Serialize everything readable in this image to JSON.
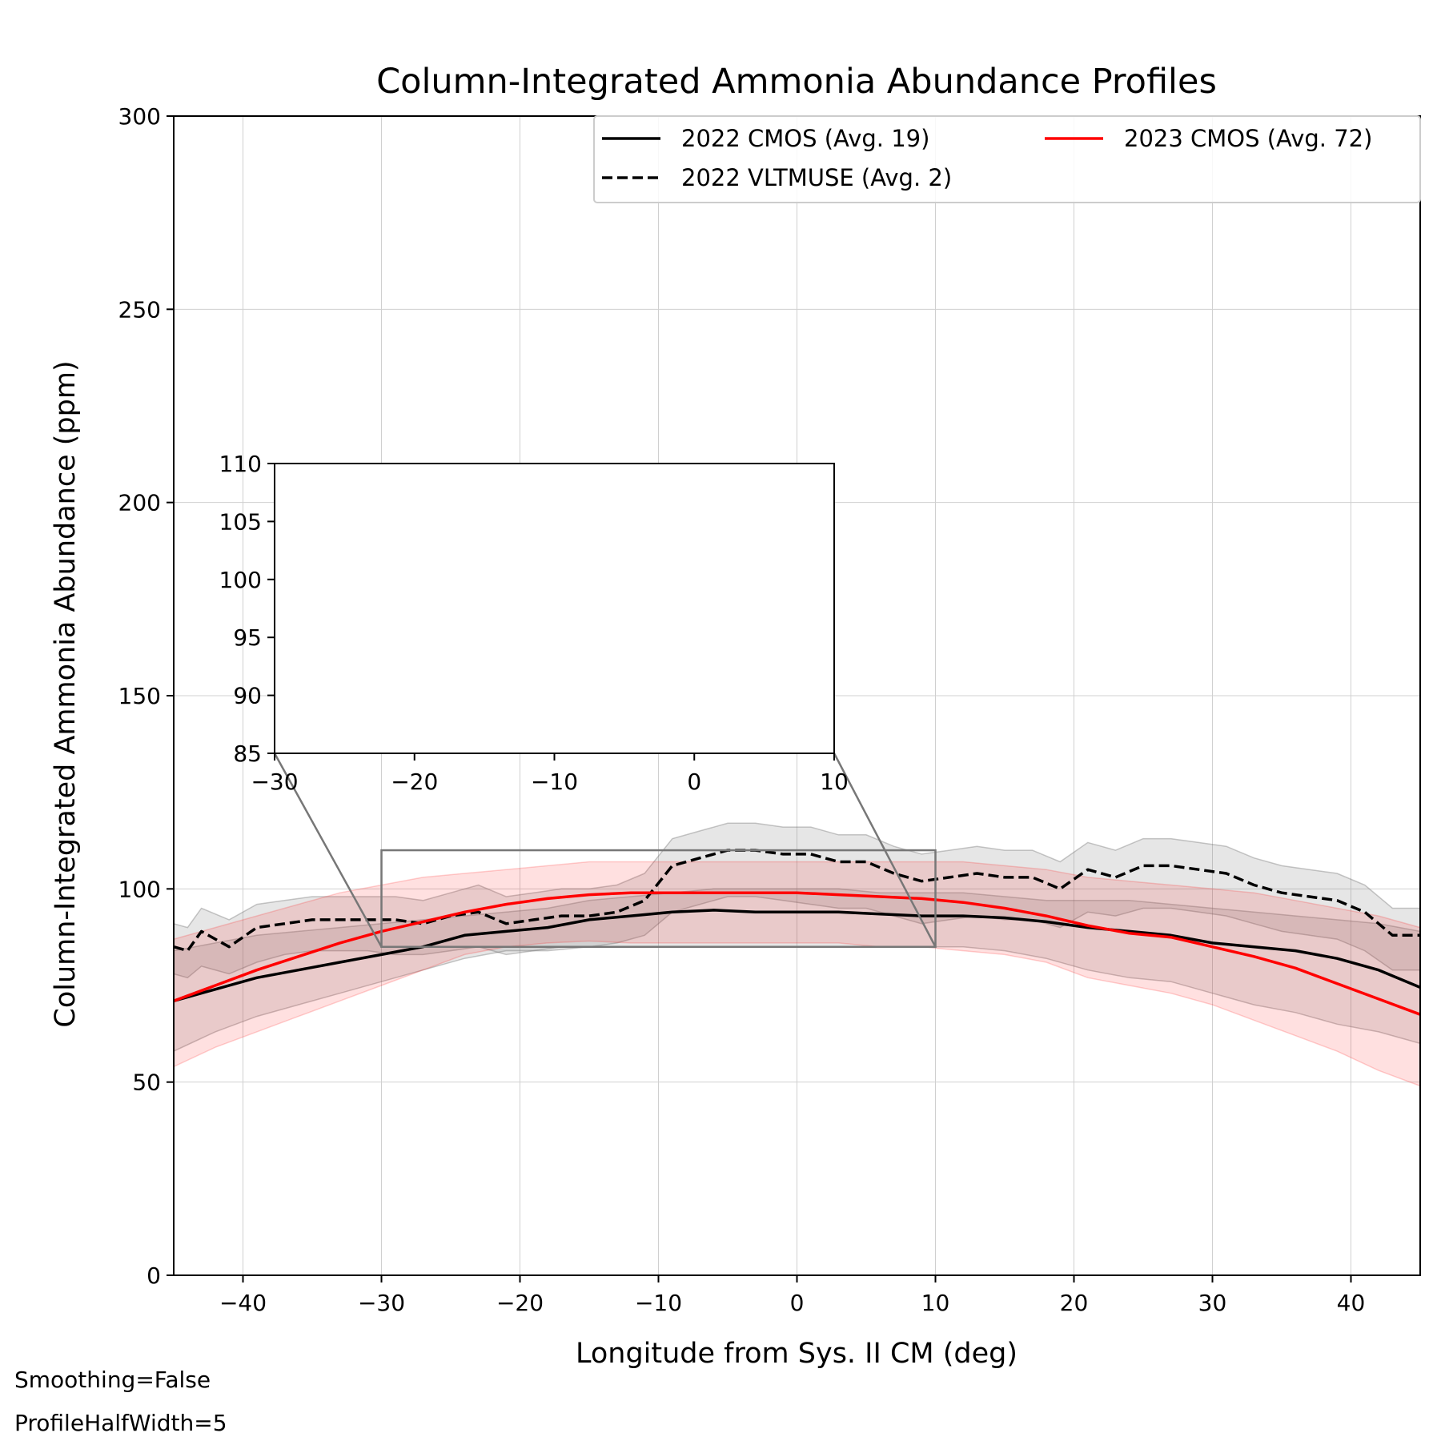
{
  "chart_data": {
    "type": "line",
    "title": "Column-Integrated Ammonia Abundance Profiles",
    "xlabel": "Longitude from Sys. II CM (deg)",
    "ylabel": "Column-Integrated Ammonia Abundance (ppm)",
    "xlim": [
      -45,
      45
    ],
    "ylim": [
      0,
      300
    ],
    "x_ticks": [
      -40,
      -30,
      -20,
      -10,
      0,
      10,
      20,
      30,
      40
    ],
    "y_ticks": [
      0,
      50,
      100,
      150,
      200,
      250,
      300
    ],
    "grid": true,
    "legend_position": "top-right",
    "notes": [
      "Smoothing=False",
      "ProfileHalfWidth=5"
    ],
    "series": [
      {
        "name": "2022 CMOS (Avg. 19)",
        "color": "#000000",
        "style": "solid",
        "x": [
          -45,
          -42,
          -39,
          -36,
          -33,
          -30,
          -27,
          -24,
          -21,
          -18,
          -15,
          -12,
          -9,
          -6,
          -3,
          0,
          3,
          6,
          9,
          12,
          15,
          18,
          21,
          24,
          27,
          30,
          33,
          36,
          39,
          42,
          45
        ],
        "y": [
          71,
          74,
          77,
          79,
          81,
          83,
          85,
          88,
          89,
          90,
          92,
          93,
          94,
          94.5,
          94,
          94,
          94,
          93.5,
          93,
          93,
          92.5,
          91.5,
          90,
          89,
          88,
          86,
          85,
          84,
          82,
          79,
          74.5
        ],
        "lower": [
          58,
          63,
          67,
          70,
          73,
          76,
          79,
          82,
          84,
          84,
          85,
          85,
          85,
          85,
          85,
          85,
          85,
          85,
          85,
          85,
          84,
          82,
          79,
          77,
          76,
          73,
          70,
          68,
          65,
          63,
          60
        ],
        "upper": [
          84,
          86,
          88,
          89,
          90,
          91,
          92,
          93,
          94,
          95,
          97,
          98,
          99,
          100,
          100,
          100,
          100,
          99,
          99,
          99,
          98,
          97,
          97,
          97,
          96,
          95,
          94,
          93,
          92,
          91,
          89
        ]
      },
      {
        "name": "2022 VLTMUSE (Avg. 2)",
        "color": "#000000",
        "style": "dashed",
        "x": [
          -45,
          -44,
          -43,
          -41,
          -39,
          -37,
          -35,
          -33,
          -31,
          -29,
          -27,
          -25,
          -23,
          -21,
          -19,
          -17,
          -15,
          -13,
          -11,
          -9,
          -7,
          -5,
          -3,
          -1,
          1,
          3,
          5,
          7,
          9,
          11,
          13,
          15,
          17,
          19,
          21,
          23,
          25,
          27,
          29,
          31,
          33,
          35,
          37,
          39,
          41,
          43,
          45
        ],
        "y": [
          85,
          84,
          89,
          85,
          90,
          91,
          92,
          92,
          92,
          92,
          91,
          93,
          94,
          91,
          92,
          93,
          93,
          94,
          97,
          106,
          108,
          110,
          110,
          109,
          109,
          107,
          107,
          104,
          102,
          103,
          104,
          103,
          103,
          100,
          105,
          103,
          106,
          106,
          105,
          104,
          101,
          99,
          98,
          97,
          94,
          88,
          88
        ],
        "lower": [
          78,
          77,
          80,
          78,
          81,
          83,
          84,
          84,
          84,
          83,
          83,
          84,
          85,
          83,
          84,
          85,
          85,
          86,
          88,
          94,
          96,
          98,
          98,
          97,
          96,
          95,
          95,
          93,
          91,
          92,
          93,
          92,
          92,
          90,
          94,
          93,
          95,
          95,
          94,
          93,
          91,
          89,
          88,
          87,
          84,
          79,
          79
        ],
        "upper": [
          91,
          90,
          95,
          92,
          96,
          97,
          98,
          98,
          98,
          98,
          97,
          99,
          101,
          98,
          99,
          100,
          100,
          101,
          104,
          113,
          115,
          117,
          117,
          116,
          116,
          114,
          114,
          111,
          109,
          110,
          111,
          110,
          110,
          107,
          112,
          110,
          113,
          113,
          112,
          111,
          108,
          106,
          105,
          104,
          101,
          95,
          95
        ]
      },
      {
        "name": "2023 CMOS (Avg. 72)",
        "color": "#ff0000",
        "style": "solid",
        "x": [
          -45,
          -42,
          -39,
          -36,
          -33,
          -30,
          -27,
          -24,
          -21,
          -18,
          -15,
          -12,
          -9,
          -6,
          -3,
          0,
          3,
          6,
          9,
          12,
          15,
          18,
          21,
          24,
          27,
          30,
          33,
          36,
          39,
          42,
          45
        ],
        "y": [
          71,
          75,
          79,
          82.5,
          86,
          89,
          91.5,
          94,
          96,
          97.5,
          98.5,
          99,
          99,
          99,
          99,
          99,
          98.5,
          98,
          97.5,
          96.5,
          95,
          93,
          90.5,
          88.5,
          87.5,
          85,
          82.5,
          79.5,
          75.5,
          71.5,
          67.5
        ],
        "lower": [
          54,
          59,
          63,
          67,
          71,
          75,
          79,
          83,
          85,
          86,
          86.5,
          86,
          86,
          86,
          86,
          86,
          86,
          85,
          85,
          84,
          83,
          81,
          77,
          75,
          73,
          70,
          66,
          62,
          58,
          53,
          49
        ],
        "upper": [
          87,
          90,
          93,
          96,
          99,
          101,
          103,
          104,
          105,
          106,
          107,
          107,
          107,
          107,
          107,
          107,
          107,
          107,
          107,
          107,
          106,
          105,
          103,
          102,
          101,
          100,
          99,
          97,
          95,
          93,
          90
        ]
      }
    ],
    "inset": {
      "xlim": [
        -30,
        10
      ],
      "ylim": [
        85,
        110
      ],
      "x_ticks": [
        -30,
        -20,
        -10,
        0,
        10
      ],
      "y_ticks": [
        85,
        90,
        95,
        100,
        105,
        110
      ]
    }
  }
}
